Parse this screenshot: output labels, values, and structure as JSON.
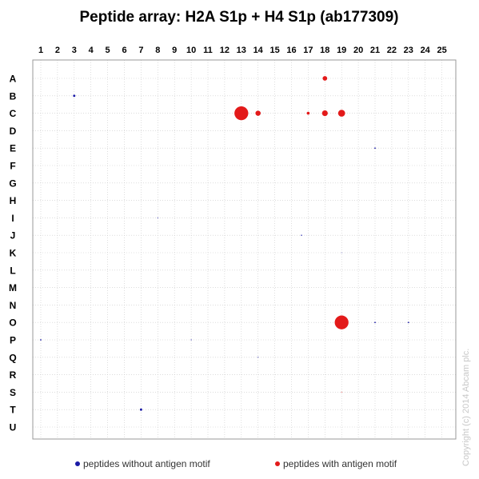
{
  "chart_data": {
    "type": "scatter",
    "title": "Peptide array: H2A S1p + H4 S1p (ab177309)",
    "x_categories": [
      "1",
      "2",
      "3",
      "4",
      "5",
      "6",
      "7",
      "8",
      "9",
      "10",
      "11",
      "12",
      "13",
      "14",
      "15",
      "16",
      "17",
      "18",
      "19",
      "20",
      "21",
      "22",
      "23",
      "24",
      "25"
    ],
    "y_categories": [
      "A",
      "B",
      "C",
      "D",
      "E",
      "F",
      "G",
      "H",
      "I",
      "J",
      "K",
      "L",
      "M",
      "N",
      "O",
      "P",
      "Q",
      "R",
      "S",
      "T",
      "U"
    ],
    "grid": true,
    "legend_position": "bottom",
    "series": [
      {
        "name": "peptides without antigen motif",
        "color": "#1a1aa6",
        "points": [
          {
            "x": 3,
            "y": "B",
            "size": 2.0
          },
          {
            "x": 21,
            "y": "E",
            "size": 1.2
          },
          {
            "x": 8,
            "y": "I",
            "size": 0.8
          },
          {
            "x": 16.6,
            "y": "J",
            "size": 1.0
          },
          {
            "x": 19,
            "y": "K",
            "size": 0.6
          },
          {
            "x": 21,
            "y": "O",
            "size": 1.2
          },
          {
            "x": 23,
            "y": "O",
            "size": 1.2
          },
          {
            "x": 1,
            "y": "P",
            "size": 1.2
          },
          {
            "x": 10,
            "y": "P",
            "size": 0.8
          },
          {
            "x": 14,
            "y": "Q",
            "size": 0.8
          },
          {
            "x": 7,
            "y": "T",
            "size": 2.0
          }
        ]
      },
      {
        "name": "peptides with antigen motif",
        "color": "#e31a1a",
        "points": [
          {
            "x": 18,
            "y": "A",
            "size": 4.0
          },
          {
            "x": 13,
            "y": "C",
            "size": 12.0
          },
          {
            "x": 14,
            "y": "C",
            "size": 4.5
          },
          {
            "x": 17,
            "y": "C",
            "size": 2.5
          },
          {
            "x": 18,
            "y": "C",
            "size": 5.0
          },
          {
            "x": 19,
            "y": "C",
            "size": 6.0
          },
          {
            "x": 19,
            "y": "O",
            "size": 12.0
          },
          {
            "x": 19,
            "y": "S",
            "size": 0.7
          }
        ]
      }
    ],
    "watermark": "Copyright (c) 2014 Abcam plc."
  }
}
